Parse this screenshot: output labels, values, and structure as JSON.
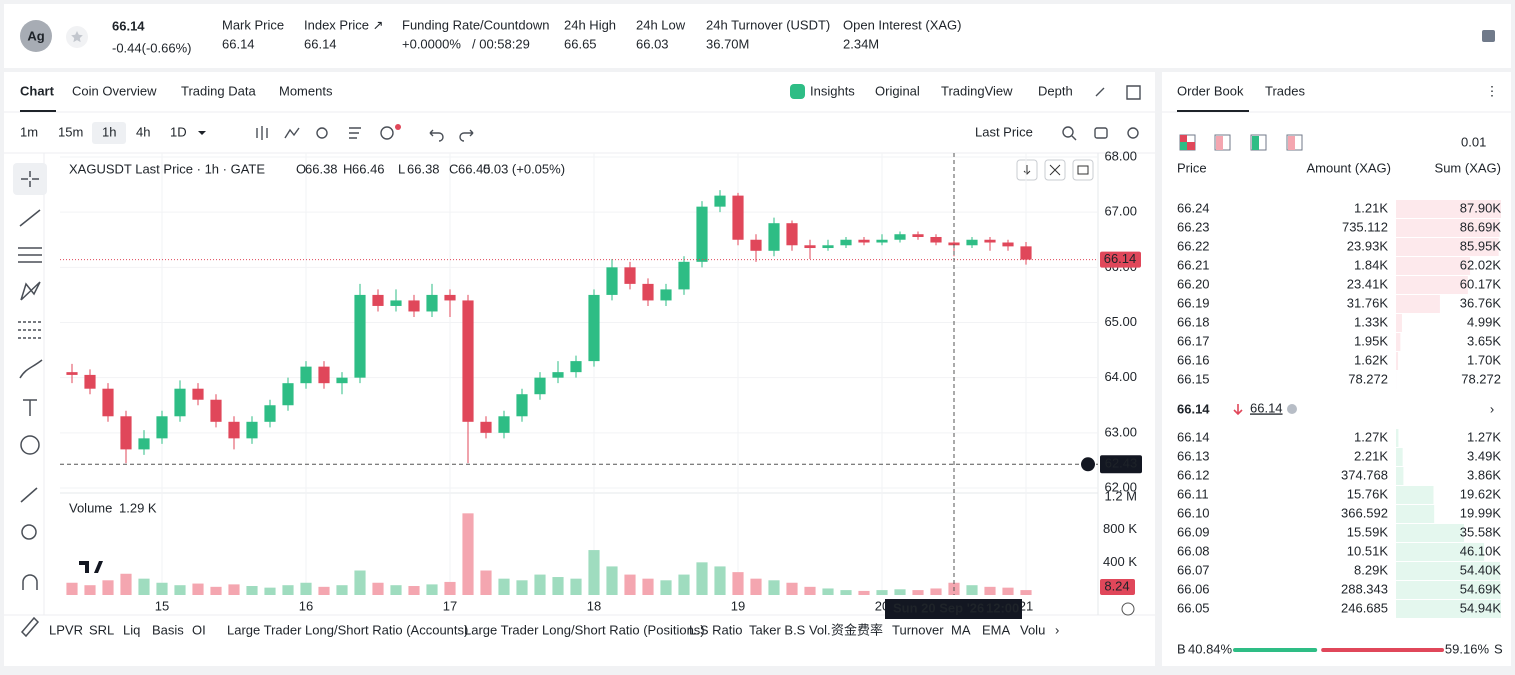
{
  "header": {
    "symbol": "Ag",
    "price": 66.14,
    "change": "-0.44(-0.66%)",
    "stats": [
      {
        "label": "Mark Price",
        "value": "66.14"
      },
      {
        "label": "Index Price ↗",
        "value": "66.14"
      },
      {
        "label": "Funding Rate/Countdown",
        "value": "+0.0000%",
        "extra": "/ 00:58:29"
      },
      {
        "label": "24h High",
        "value": "66.65"
      },
      {
        "label": "24h Low",
        "value": "66.03"
      },
      {
        "label": "24h Turnover (USDT)",
        "value": "36.70M"
      },
      {
        "label": "Open Interest (XAG)",
        "value": "2.34M"
      }
    ]
  },
  "tabs": [
    "Chart",
    "Coin Overview",
    "Trading Data",
    "Moments"
  ],
  "view_tabs": [
    "Insights",
    "Original",
    "TradingView",
    "Depth"
  ],
  "intervals": [
    "1m",
    "15m",
    "1h",
    "4h",
    "1D"
  ],
  "price_source": "Last Price",
  "indicators": [
    "LPVR",
    "SRL",
    "Liq",
    "Basis",
    "OI",
    "Large Trader Long/Short Ratio (Accounts)",
    "Large Trader Long/Short Ratio (Positions)",
    "L.S Ratio",
    "Taker B.S Vol.",
    "资金费率",
    "Turnover",
    "MA",
    "EMA",
    "Volu"
  ],
  "chart_data": {
    "type": "candlestick",
    "legend": {
      "title": "XAGUSDT Last Price · 1h · GATE",
      "keys": [
        "O",
        "H",
        "L",
        "C"
      ],
      "open": 66.38,
      "high": 66.46,
      "low": 66.38,
      "close": 66.45,
      "change": "0.03 (+0.05%)"
    },
    "x": [
      -15,
      -12,
      -9,
      -6,
      -3,
      0,
      3,
      6,
      9,
      12,
      15,
      18,
      21,
      24,
      27,
      30,
      33,
      36,
      39,
      42,
      45,
      48,
      51,
      54,
      57,
      60,
      63,
      66,
      69,
      72,
      75,
      78,
      81,
      84,
      87,
      90,
      93,
      96,
      99,
      102,
      105,
      108,
      111,
      114,
      117,
      120,
      123,
      126,
      129,
      132,
      135,
      138,
      141,
      144
    ],
    "open": [
      64.1,
      64.05,
      63.8,
      63.3,
      62.7,
      62.9,
      63.3,
      63.8,
      63.6,
      63.2,
      62.9,
      63.2,
      63.5,
      63.9,
      64.2,
      63.9,
      64.0,
      65.5,
      65.3,
      65.4,
      65.2,
      65.5,
      65.4,
      63.2,
      63.0,
      63.3,
      63.7,
      64.0,
      64.1,
      64.3,
      65.5,
      66.0,
      65.7,
      65.4,
      65.6,
      66.1,
      67.1,
      67.3,
      66.5,
      66.3,
      66.8,
      66.4,
      66.35,
      66.4,
      66.5,
      66.45,
      66.5,
      66.6,
      66.55,
      66.45,
      66.4,
      66.5,
      66.45,
      66.38
    ],
    "high": [
      64.25,
      64.15,
      63.9,
      63.4,
      63.05,
      63.4,
      63.95,
      63.9,
      63.7,
      63.3,
      63.3,
      63.6,
      64.0,
      64.3,
      64.3,
      64.1,
      65.7,
      65.6,
      65.6,
      65.5,
      65.7,
      65.6,
      65.5,
      63.3,
      63.4,
      63.8,
      64.1,
      64.3,
      64.4,
      65.6,
      66.15,
      66.1,
      65.8,
      65.7,
      66.2,
      67.2,
      67.4,
      67.35,
      66.6,
      66.9,
      66.85,
      66.5,
      66.5,
      66.55,
      66.55,
      66.6,
      66.65,
      66.65,
      66.6,
      66.5,
      66.55,
      66.55,
      66.5,
      66.46
    ],
    "low": [
      63.9,
      63.7,
      63.2,
      62.45,
      62.6,
      62.8,
      63.2,
      63.5,
      63.1,
      62.7,
      62.8,
      63.1,
      63.4,
      63.8,
      63.8,
      63.7,
      63.9,
      65.2,
      65.2,
      65.1,
      65.1,
      65.1,
      62.45,
      62.9,
      62.9,
      63.2,
      63.6,
      63.9,
      64.0,
      64.2,
      65.4,
      65.6,
      65.3,
      65.3,
      65.5,
      66.0,
      67.0,
      66.4,
      66.1,
      66.2,
      66.3,
      66.15,
      66.3,
      66.35,
      66.4,
      66.4,
      66.45,
      66.5,
      66.4,
      66.2,
      66.35,
      66.3,
      66.3,
      66.05
    ],
    "close": [
      64.05,
      63.8,
      63.3,
      62.7,
      62.9,
      63.3,
      63.8,
      63.6,
      63.2,
      62.9,
      63.2,
      63.5,
      63.9,
      64.2,
      63.9,
      64.0,
      65.5,
      65.3,
      65.4,
      65.2,
      65.5,
      65.4,
      63.2,
      63.0,
      63.3,
      63.7,
      64.0,
      64.1,
      64.3,
      65.5,
      66.0,
      65.7,
      65.4,
      65.6,
      66.1,
      67.1,
      67.3,
      66.5,
      66.3,
      66.8,
      66.4,
      66.35,
      66.4,
      66.5,
      66.45,
      66.5,
      66.6,
      66.55,
      66.45,
      66.4,
      66.5,
      66.45,
      66.38,
      66.14
    ],
    "up_color": "#2ebd85",
    "down_color": "#e0475a",
    "xlim": [
      -17,
      156
    ],
    "xticks": [
      {
        "value": 0,
        "label": "15"
      },
      {
        "value": 24,
        "label": "16"
      },
      {
        "value": 48,
        "label": "17"
      },
      {
        "value": 72,
        "label": "18"
      },
      {
        "value": 96,
        "label": "19"
      },
      {
        "value": 120,
        "label": "20"
      },
      {
        "value": 144,
        "label": "21"
      }
    ],
    "ylim": [
      62,
      68
    ],
    "yticks": [
      {
        "value": 62,
        "label": "62.00"
      },
      {
        "value": 63,
        "label": "63.00"
      },
      {
        "value": 64,
        "label": "64.00"
      },
      {
        "value": 65,
        "label": "65.00"
      },
      {
        "value": 66,
        "label": "66.00"
      },
      {
        "value": 67,
        "label": "67.00"
      },
      {
        "value": 68,
        "label": "68.00"
      }
    ],
    "grid": true,
    "last_price": {
      "value": 66.14,
      "label": "66.14"
    },
    "crosshair": {
      "x": 132,
      "y": 62.43,
      "date": "Sun 20 Sep '26",
      "time": "12:00"
    },
    "volume": {
      "name": "Volume",
      "current": "1.29 K",
      "last_label": "8.24",
      "values": [
        150,
        120,
        180,
        260,
        200,
        150,
        120,
        140,
        100,
        130,
        110,
        90,
        120,
        150,
        100,
        120,
        300,
        150,
        120,
        110,
        130,
        160,
        1000,
        300,
        200,
        180,
        250,
        220,
        200,
        550,
        350,
        250,
        200,
        180,
        250,
        400,
        350,
        280,
        200,
        180,
        150,
        100,
        80,
        60,
        50,
        60,
        70,
        60,
        80,
        150,
        120,
        100,
        90,
        60
      ],
      "ylim": [
        0,
        1200
      ],
      "yticks": [
        {
          "value": 400,
          "label": "400 K"
        },
        {
          "value": 800,
          "label": "800 K"
        },
        {
          "value": 1200,
          "label": "1.2 M"
        }
      ]
    }
  },
  "order_book": {
    "tabs": [
      "Order Book",
      "Trades"
    ],
    "precision": "0.01",
    "columns": [
      "Price",
      "Amount (XAG)",
      "Sum (XAG)"
    ],
    "asks": [
      {
        "price": "66.24",
        "amount": "1.21K",
        "sum": {
          "value": 87900,
          "label": "87.90K"
        }
      },
      {
        "price": "66.23",
        "amount": "735.112",
        "sum": {
          "value": 86690,
          "label": "86.69K"
        }
      },
      {
        "price": "66.22",
        "amount": "23.93K",
        "sum": {
          "value": 85950,
          "label": "85.95K"
        }
      },
      {
        "price": "66.21",
        "amount": "1.84K",
        "sum": {
          "value": 62020,
          "label": "62.02K"
        }
      },
      {
        "price": "66.20",
        "amount": "23.41K",
        "sum": {
          "value": 60170,
          "label": "60.17K"
        }
      },
      {
        "price": "66.19",
        "amount": "31.76K",
        "sum": {
          "value": 36760,
          "label": "36.76K"
        }
      },
      {
        "price": "66.18",
        "amount": "1.33K",
        "sum": {
          "value": 4990,
          "label": "4.99K"
        }
      },
      {
        "price": "66.17",
        "amount": "1.95K",
        "sum": {
          "value": 3650,
          "label": "3.65K"
        }
      },
      {
        "price": "66.16",
        "amount": "1.62K",
        "sum": {
          "value": 1700,
          "label": "1.70K"
        }
      },
      {
        "price": "66.15",
        "amount": "78.272",
        "sum": {
          "value": 78.272,
          "label": "78.272"
        }
      }
    ],
    "mid": {
      "price": "66.14",
      "mark": "66.14"
    },
    "bids": [
      {
        "price": "66.14",
        "amount": "1.27K",
        "sum": {
          "value": 1270,
          "label": "1.27K"
        }
      },
      {
        "price": "66.13",
        "amount": "2.21K",
        "sum": {
          "value": 3490,
          "label": "3.49K"
        }
      },
      {
        "price": "66.12",
        "amount": "374.768",
        "sum": {
          "value": 3860,
          "label": "3.86K"
        }
      },
      {
        "price": "66.11",
        "amount": "15.76K",
        "sum": {
          "value": 19620,
          "label": "19.62K"
        }
      },
      {
        "price": "66.10",
        "amount": "366.592",
        "sum": {
          "value": 19990,
          "label": "19.99K"
        }
      },
      {
        "price": "66.09",
        "amount": "15.59K",
        "sum": {
          "value": 35580,
          "label": "35.58K"
        }
      },
      {
        "price": "66.08",
        "amount": "10.51K",
        "sum": {
          "value": 46100,
          "label": "46.10K"
        }
      },
      {
        "price": "66.07",
        "amount": "8.29K",
        "sum": {
          "value": 54400,
          "label": "54.40K"
        }
      },
      {
        "price": "66.06",
        "amount": "288.343",
        "sum": {
          "value": 54690,
          "label": "54.69K"
        }
      },
      {
        "price": "66.05",
        "amount": "246.685",
        "sum": {
          "value": 54940,
          "label": "54.94K"
        }
      }
    ],
    "ratio": {
      "buy_key": "B",
      "sell_key": "S",
      "buy": {
        "value": 40.84,
        "label": "40.84%"
      },
      "sell": {
        "value": 59.16,
        "label": "59.16%"
      }
    }
  }
}
